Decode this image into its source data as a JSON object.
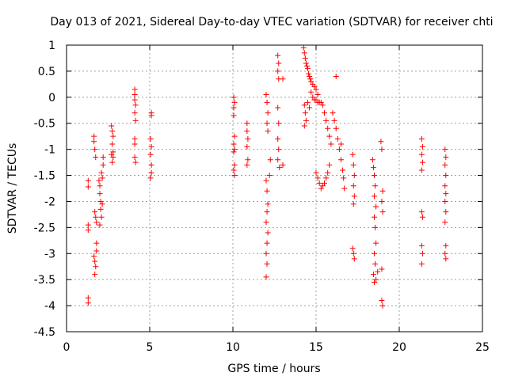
{
  "chart_data": {
    "type": "scatter",
    "title": "Day 013 of 2021, Sidereal Day-to-day VTEC variation (SDTVAR) for receiver chti",
    "xlabel": "GPS time / hours",
    "ylabel": "SDTVAR / TECUs",
    "xlim": [
      0,
      25
    ],
    "ylim": [
      -4.5,
      1
    ],
    "xticks": [
      0,
      5,
      10,
      15,
      20,
      25
    ],
    "yticks": [
      1,
      0.5,
      0,
      -0.5,
      -1,
      -1.5,
      -2,
      -2.5,
      -3,
      -3.5,
      -4,
      -4.5
    ],
    "xtick_labels": [
      "0",
      "5",
      "10",
      "15",
      "20",
      "25"
    ],
    "ytick_labels": [
      "1",
      "0.5",
      "0",
      "-0.5",
      "-1",
      "-1.5",
      "-2",
      "-2.5",
      "-3",
      "-3.5",
      "-4",
      "-4.5"
    ],
    "grid": true,
    "marker": "+",
    "color": "#ff0000",
    "series": [
      {
        "name": "SDTVAR",
        "points": [
          [
            1.3,
            -3.85
          ],
          [
            1.3,
            -3.95
          ],
          [
            1.3,
            -2.45
          ],
          [
            1.3,
            -2.55
          ],
          [
            1.3,
            -1.6
          ],
          [
            1.3,
            -1.72
          ],
          [
            1.65,
            -0.75
          ],
          [
            1.65,
            -0.85
          ],
          [
            1.7,
            -1.0
          ],
          [
            1.75,
            -1.15
          ],
          [
            1.7,
            -2.2
          ],
          [
            1.75,
            -2.3
          ],
          [
            1.8,
            -2.4
          ],
          [
            1.65,
            -3.05
          ],
          [
            1.7,
            -3.15
          ],
          [
            1.75,
            -3.25
          ],
          [
            1.7,
            -3.4
          ],
          [
            1.8,
            -2.95
          ],
          [
            1.8,
            -2.8
          ],
          [
            1.95,
            -1.6
          ],
          [
            2.0,
            -1.7
          ],
          [
            2.0,
            -1.85
          ],
          [
            2.05,
            -2.0
          ],
          [
            2.05,
            -2.15
          ],
          [
            2.1,
            -2.3
          ],
          [
            2.0,
            -2.45
          ],
          [
            2.1,
            -1.45
          ],
          [
            2.15,
            -1.55
          ],
          [
            2.2,
            -1.3
          ],
          [
            2.2,
            -1.15
          ],
          [
            2.15,
            -2.05
          ],
          [
            2.7,
            -0.55
          ],
          [
            2.75,
            -0.65
          ],
          [
            2.8,
            -0.75
          ],
          [
            2.75,
            -0.9
          ],
          [
            2.8,
            -1.05
          ],
          [
            2.7,
            -1.1
          ],
          [
            2.8,
            -1.15
          ],
          [
            2.75,
            -1.25
          ],
          [
            4.1,
            0.15
          ],
          [
            4.1,
            0.05
          ],
          [
            4.1,
            -0.05
          ],
          [
            4.15,
            -0.15
          ],
          [
            4.1,
            -0.3
          ],
          [
            4.15,
            -0.45
          ],
          [
            4.1,
            -0.8
          ],
          [
            4.1,
            -0.9
          ],
          [
            4.1,
            -1.15
          ],
          [
            4.15,
            -1.25
          ],
          [
            5.1,
            -0.3
          ],
          [
            5.1,
            -0.35
          ],
          [
            5.05,
            -0.8
          ],
          [
            5.1,
            -0.95
          ],
          [
            5.05,
            -1.1
          ],
          [
            5.1,
            -1.3
          ],
          [
            5.1,
            -1.45
          ],
          [
            5.05,
            -1.55
          ],
          [
            10.05,
            0.0
          ],
          [
            10.1,
            -0.1
          ],
          [
            10.05,
            -0.2
          ],
          [
            10.05,
            -0.35
          ],
          [
            10.1,
            -0.75
          ],
          [
            10.05,
            -0.9
          ],
          [
            10.1,
            -1.0
          ],
          [
            10.05,
            -1.05
          ],
          [
            10.1,
            -1.3
          ],
          [
            10.05,
            -1.4
          ],
          [
            10.1,
            -1.5
          ],
          [
            10.85,
            -0.5
          ],
          [
            10.85,
            -0.65
          ],
          [
            10.9,
            -0.8
          ],
          [
            10.85,
            -0.95
          ],
          [
            10.9,
            -1.2
          ],
          [
            10.85,
            -1.3
          ],
          [
            12.0,
            0.05
          ],
          [
            12.05,
            -0.1
          ],
          [
            12.1,
            -0.3
          ],
          [
            12.05,
            -0.5
          ],
          [
            12.1,
            -0.65
          ],
          [
            12.0,
            -1.6
          ],
          [
            12.05,
            -1.8
          ],
          [
            12.1,
            -2.05
          ],
          [
            12.05,
            -2.2
          ],
          [
            12.0,
            -2.4
          ],
          [
            12.1,
            -2.6
          ],
          [
            12.05,
            -2.8
          ],
          [
            12.0,
            -3.0
          ],
          [
            12.05,
            -3.2
          ],
          [
            12.0,
            -3.45
          ],
          [
            12.2,
            -1.5
          ],
          [
            12.25,
            -1.2
          ],
          [
            12.7,
            0.8
          ],
          [
            12.75,
            0.65
          ],
          [
            12.7,
            0.5
          ],
          [
            12.75,
            0.35
          ],
          [
            12.7,
            -0.2
          ],
          [
            12.75,
            -0.5
          ],
          [
            12.7,
            -0.8
          ],
          [
            12.75,
            -1.0
          ],
          [
            12.7,
            -1.2
          ],
          [
            12.8,
            -1.35
          ],
          [
            13.0,
            0.35
          ],
          [
            13.0,
            -1.3
          ],
          [
            14.25,
            0.95
          ],
          [
            14.3,
            0.85
          ],
          [
            14.35,
            0.75
          ],
          [
            14.4,
            0.65
          ],
          [
            14.45,
            0.6
          ],
          [
            14.5,
            0.55
          ],
          [
            14.55,
            0.45
          ],
          [
            14.6,
            0.4
          ],
          [
            14.65,
            0.35
          ],
          [
            14.7,
            0.3
          ],
          [
            14.8,
            0.25
          ],
          [
            14.9,
            0.2
          ],
          [
            15.0,
            0.15
          ],
          [
            15.1,
            0.05
          ],
          [
            14.3,
            -0.15
          ],
          [
            14.35,
            -0.3
          ],
          [
            14.4,
            -0.45
          ],
          [
            14.3,
            -0.55
          ],
          [
            14.5,
            -0.1
          ],
          [
            14.6,
            -0.2
          ],
          [
            14.7,
            0.1
          ],
          [
            14.8,
            0.0
          ],
          [
            14.9,
            -0.05
          ],
          [
            15.0,
            -0.05
          ],
          [
            15.1,
            -0.1
          ],
          [
            15.2,
            -0.1
          ],
          [
            15.3,
            -0.1
          ],
          [
            15.4,
            -0.15
          ],
          [
            15.5,
            -0.3
          ],
          [
            15.6,
            -0.45
          ],
          [
            15.7,
            -0.6
          ],
          [
            15.8,
            -0.75
          ],
          [
            15.9,
            -0.9
          ],
          [
            15.0,
            -1.45
          ],
          [
            15.1,
            -1.55
          ],
          [
            15.2,
            -1.65
          ],
          [
            15.3,
            -1.75
          ],
          [
            15.4,
            -1.7
          ],
          [
            15.5,
            -1.65
          ],
          [
            15.6,
            -1.55
          ],
          [
            15.7,
            -1.45
          ],
          [
            15.8,
            -1.3
          ],
          [
            16.0,
            -0.3
          ],
          [
            16.1,
            -0.45
          ],
          [
            16.2,
            -0.6
          ],
          [
            16.3,
            -0.8
          ],
          [
            16.4,
            -1.0
          ],
          [
            16.2,
            0.4
          ],
          [
            16.5,
            -1.2
          ],
          [
            16.6,
            -1.4
          ],
          [
            16.65,
            -1.55
          ],
          [
            16.7,
            -1.75
          ],
          [
            16.5,
            -0.9
          ],
          [
            17.2,
            -1.1
          ],
          [
            17.25,
            -1.3
          ],
          [
            17.3,
            -1.5
          ],
          [
            17.25,
            -1.7
          ],
          [
            17.3,
            -1.9
          ],
          [
            17.25,
            -2.05
          ],
          [
            17.2,
            -2.9
          ],
          [
            17.25,
            -3.0
          ],
          [
            17.3,
            -3.1
          ],
          [
            18.4,
            -1.2
          ],
          [
            18.45,
            -1.35
          ],
          [
            18.5,
            -1.5
          ],
          [
            18.55,
            -1.7
          ],
          [
            18.5,
            -1.9
          ],
          [
            18.6,
            -2.1
          ],
          [
            18.5,
            -2.3
          ],
          [
            18.55,
            -2.5
          ],
          [
            18.6,
            -2.8
          ],
          [
            18.5,
            -3.0
          ],
          [
            18.55,
            -3.2
          ],
          [
            18.45,
            -3.4
          ],
          [
            18.5,
            -3.55
          ],
          [
            18.6,
            -3.5
          ],
          [
            18.7,
            -3.35
          ],
          [
            18.9,
            -0.85
          ],
          [
            18.95,
            -1.0
          ],
          [
            19.0,
            -1.8
          ],
          [
            18.95,
            -2.0
          ],
          [
            19.0,
            -2.2
          ],
          [
            18.95,
            -3.3
          ],
          [
            18.95,
            -3.9
          ],
          [
            19.0,
            -4.0
          ],
          [
            21.35,
            -0.8
          ],
          [
            21.4,
            -0.95
          ],
          [
            21.35,
            -1.1
          ],
          [
            21.4,
            -1.25
          ],
          [
            21.35,
            -1.4
          ],
          [
            21.35,
            -2.2
          ],
          [
            21.4,
            -2.3
          ],
          [
            21.35,
            -2.85
          ],
          [
            21.4,
            -3.0
          ],
          [
            21.35,
            -3.2
          ],
          [
            22.75,
            -1.0
          ],
          [
            22.8,
            -1.15
          ],
          [
            22.75,
            -1.3
          ],
          [
            22.8,
            -1.5
          ],
          [
            22.75,
            -1.7
          ],
          [
            22.8,
            -1.85
          ],
          [
            22.75,
            -2.0
          ],
          [
            22.8,
            -2.2
          ],
          [
            22.75,
            -2.4
          ],
          [
            22.8,
            -2.85
          ],
          [
            22.75,
            -3.0
          ],
          [
            22.8,
            -3.1
          ]
        ]
      }
    ]
  }
}
